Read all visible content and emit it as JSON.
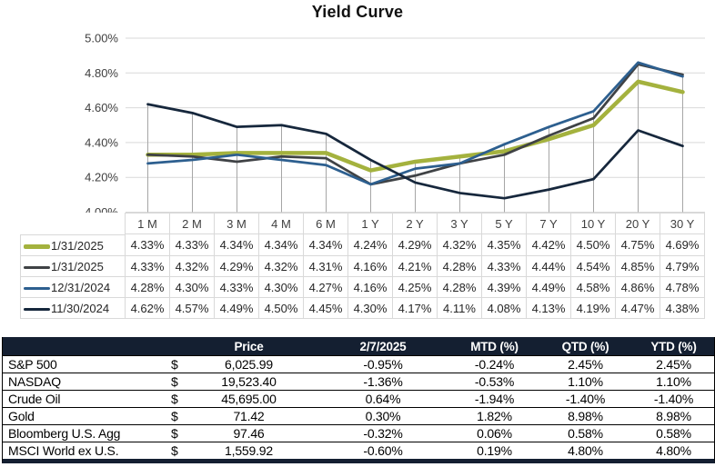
{
  "chart_data": {
    "type": "line",
    "title": "Yield Curve",
    "xlabel": "",
    "ylabel": "",
    "categories": [
      "1 M",
      "2 M",
      "3 M",
      "4 M",
      "6 M",
      "1 Y",
      "2 Y",
      "3 Y",
      "5 Y",
      "7 Y",
      "10 Y",
      "20 Y",
      "30 Y"
    ],
    "ylim": [
      4.0,
      5.0
    ],
    "y_tick_step": 0.2,
    "y_tick_format": "percent_2dp",
    "grid": true,
    "drop_lines": true,
    "legend_position": "data-table-below",
    "series": [
      {
        "name": "1/31/2025",
        "color": "#a4b23e",
        "line_width": 4.5,
        "values": [
          4.33,
          4.33,
          4.34,
          4.34,
          4.34,
          4.24,
          4.29,
          4.32,
          4.35,
          4.42,
          4.5,
          4.75,
          4.69
        ]
      },
      {
        "name": "1/31/2025",
        "color": "#3f4245",
        "line_width": 2.75,
        "values": [
          4.33,
          4.32,
          4.29,
          4.32,
          4.31,
          4.16,
          4.21,
          4.28,
          4.33,
          4.44,
          4.54,
          4.85,
          4.79
        ]
      },
      {
        "name": "12/31/2024",
        "color": "#2d5f8f",
        "line_width": 2.75,
        "values": [
          4.28,
          4.3,
          4.33,
          4.3,
          4.27,
          4.16,
          4.25,
          4.28,
          4.39,
          4.49,
          4.58,
          4.86,
          4.78
        ]
      },
      {
        "name": "11/30/2024",
        "color": "#16273c",
        "line_width": 2.75,
        "values": [
          4.62,
          4.57,
          4.49,
          4.5,
          4.45,
          4.3,
          4.17,
          4.11,
          4.08,
          4.13,
          4.19,
          4.47,
          4.38
        ]
      }
    ]
  },
  "market_table": {
    "headers": [
      "",
      "",
      "Price",
      "2/7/2025",
      "MTD (%)",
      "QTD (%)",
      "YTD (%)"
    ],
    "rows": [
      [
        "S&P 500",
        "$",
        "6,025.99",
        "-0.95%",
        "-0.24%",
        "2.45%",
        "2.45%"
      ],
      [
        "NASDAQ",
        "$",
        "19,523.40",
        "-1.36%",
        "-0.53%",
        "1.10%",
        "1.10%"
      ],
      [
        "Crude Oil",
        "$",
        "45,695.00",
        "0.64%",
        "-1.94%",
        "-1.40%",
        "-1.40%"
      ],
      [
        "Gold",
        "$",
        "71.42",
        "0.30%",
        "1.82%",
        "8.98%",
        "8.98%"
      ],
      [
        "Bloomberg U.S. Agg",
        "$",
        "97.46",
        "-0.32%",
        "0.06%",
        "0.58%",
        "0.58%"
      ],
      [
        "MSCI World ex U.S.",
        "$",
        "1,559.92",
        "-0.60%",
        "0.19%",
        "4.80%",
        "4.80%"
      ]
    ],
    "header_bg": "#141f31",
    "bottom_bar_color": "#141f31"
  },
  "colors": {
    "h_gridline": "#d9d9d9",
    "drop_line": "#a6a6a6",
    "axis_text": "#404040"
  }
}
